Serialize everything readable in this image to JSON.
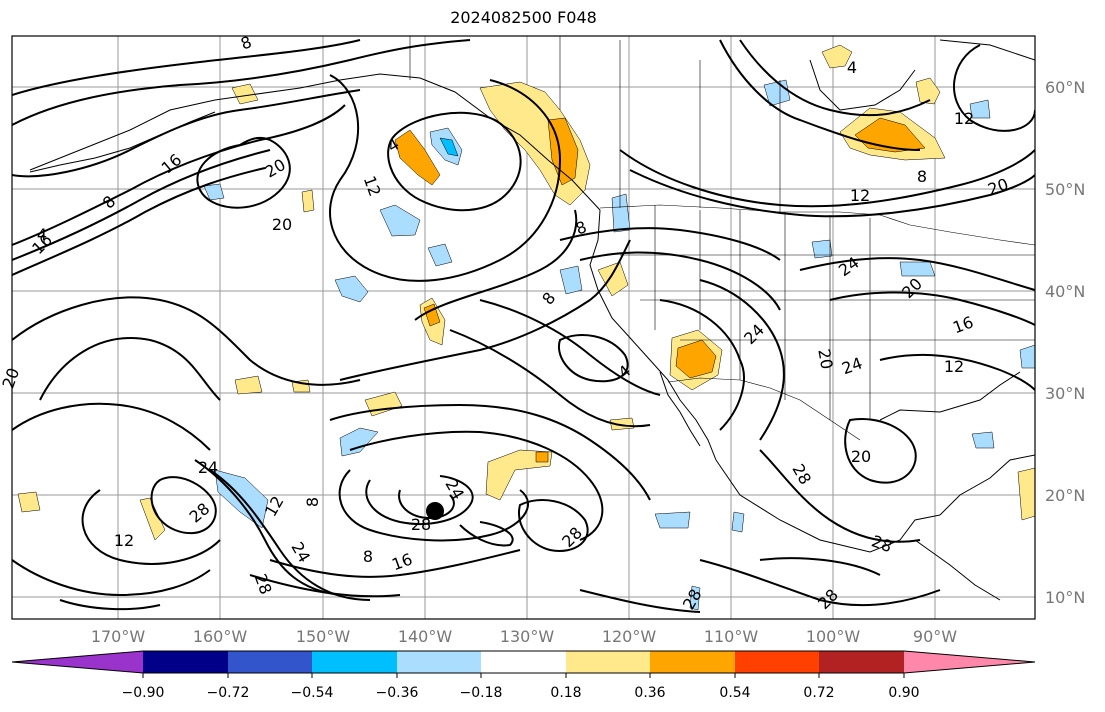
{
  "title": "2024082500 F048",
  "map": {
    "lon_labels": [
      "170°W",
      "160°W",
      "150°W",
      "140°W",
      "130°W",
      "120°W",
      "110°W",
      "100°W",
      "90°W"
    ],
    "lat_labels": [
      "60°N",
      "50°N",
      "40°N",
      "30°N",
      "20°N",
      "10°N"
    ],
    "contour_labels": [
      {
        "text": "8"
      },
      {
        "text": "4"
      },
      {
        "text": "12"
      },
      {
        "text": "16"
      },
      {
        "text": "20"
      },
      {
        "text": "12"
      },
      {
        "text": "4"
      },
      {
        "text": "8"
      },
      {
        "text": "20"
      },
      {
        "text": "24"
      },
      {
        "text": "16"
      },
      {
        "text": "8"
      },
      {
        "text": "4"
      },
      {
        "text": "24"
      },
      {
        "text": "20"
      },
      {
        "text": "16"
      },
      {
        "text": "12"
      },
      {
        "text": "20"
      },
      {
        "text": "20"
      },
      {
        "text": "24"
      },
      {
        "text": "28"
      },
      {
        "text": "12"
      },
      {
        "text": "24"
      },
      {
        "text": "28"
      },
      {
        "text": "24"
      },
      {
        "text": "28"
      },
      {
        "text": "16"
      },
      {
        "text": "8"
      },
      {
        "text": "28"
      },
      {
        "text": "24"
      },
      {
        "text": "28"
      },
      {
        "text": "28"
      },
      {
        "text": "28"
      },
      {
        "text": "28"
      },
      {
        "text": "8"
      },
      {
        "text": "20"
      },
      {
        "text": "12"
      },
      {
        "text": "4"
      },
      {
        "text": "8"
      },
      {
        "text": "12"
      },
      {
        "text": "8"
      },
      {
        "text": "20"
      }
    ],
    "storm_marker": "filled-circle"
  },
  "colorbar": {
    "ticks": [
      "−0.90",
      "−0.72",
      "−0.54",
      "−0.36",
      "−0.18",
      "0.18",
      "0.36",
      "0.54",
      "0.72",
      "0.90"
    ],
    "colors": [
      "#9933cc",
      "#000088",
      "#3355cc",
      "#00bfff",
      "#aaddff",
      "#ffffff",
      "#ffe98a",
      "#ffa500",
      "#ff4000",
      "#b22222",
      "#ff88aa"
    ]
  },
  "palette": {
    "pos_light": "#ffe98a",
    "pos_mid": "#ffa500",
    "neg_light": "#aaddff",
    "neg_mid": "#00bfff"
  }
}
